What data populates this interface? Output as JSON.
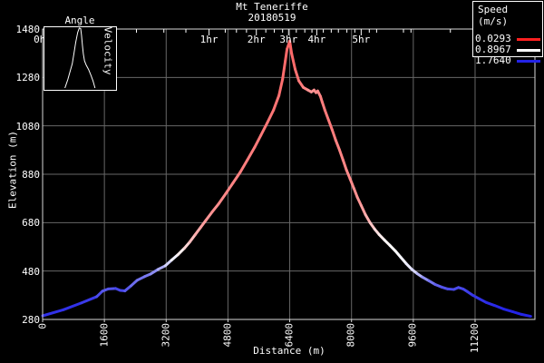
{
  "chart_data": {
    "type": "line",
    "title": "Mt Teneriffe",
    "subtitle": "20180519",
    "xlabel": "Distance (m)",
    "ylabel": "Elevation (m)",
    "xlim": [
      0,
      12750
    ],
    "ylim": [
      280,
      1480
    ],
    "x_ticks": [
      0,
      1600,
      3200,
      4800,
      6400,
      8000,
      9600,
      11200
    ],
    "y_ticks": [
      280,
      480,
      680,
      880,
      1080,
      1280,
      1480
    ],
    "grid": true,
    "top_axis": {
      "unit": "time",
      "major": [
        {
          "label": "0hr",
          "m": 0
        },
        {
          "label": "1hr",
          "m": 4310
        },
        {
          "label": "2hr",
          "m": 5535
        },
        {
          "label": "3hr",
          "m": 6370
        },
        {
          "label": "4hr",
          "m": 7100
        },
        {
          "label": "5hr",
          "m": 8250
        }
      ],
      "minor_m": [
        2430,
        3140,
        3710,
        4730,
        5020,
        5280,
        5780,
        6000,
        6215,
        6570,
        6790,
        6975,
        7270,
        7475,
        7660,
        7880,
        8085,
        8460,
        8650,
        9345,
        9540,
        10560
      ]
    },
    "legend": {
      "title": "Speed (m/s)",
      "position": "top-right",
      "values": [
        0.0293,
        0.8967,
        1.764
      ],
      "entries": [
        {
          "label": "0.0293",
          "color": "#ff2020"
        },
        {
          "label": "0.8967",
          "color": "#ffffff"
        },
        {
          "label": "1.7640",
          "color": "#2323e6"
        }
      ]
    },
    "inset": {
      "title": "Angle",
      "side_label": "Velocity",
      "curve": [
        [
          0.286,
          1.0
        ],
        [
          0.302,
          0.944
        ],
        [
          0.327,
          0.859
        ],
        [
          0.355,
          0.742
        ],
        [
          0.388,
          0.601
        ],
        [
          0.412,
          0.437
        ],
        [
          0.437,
          0.249
        ],
        [
          0.465,
          0.085
        ],
        [
          0.486,
          0.014
        ],
        [
          0.506,
          0.023
        ],
        [
          0.518,
          0.131
        ],
        [
          0.531,
          0.296
        ],
        [
          0.543,
          0.437
        ],
        [
          0.559,
          0.554
        ],
        [
          0.584,
          0.624
        ],
        [
          0.616,
          0.695
        ],
        [
          0.649,
          0.789
        ],
        [
          0.678,
          0.883
        ],
        [
          0.698,
          0.962
        ],
        [
          0.706,
          1.0
        ]
      ]
    },
    "series": [
      {
        "name": "elevation profile colored by speed",
        "point_format": [
          "distance_m",
          "elevation_m",
          "speed_mps"
        ],
        "points": [
          [
            0,
            295,
            1.7
          ],
          [
            540,
            320,
            1.72
          ],
          [
            1000,
            348,
            1.7
          ],
          [
            1400,
            374,
            1.65
          ],
          [
            1550,
            397,
            1.55
          ],
          [
            1700,
            406,
            1.55
          ],
          [
            1890,
            408,
            1.6
          ],
          [
            2010,
            400,
            1.65
          ],
          [
            2130,
            398,
            1.6
          ],
          [
            2290,
            419,
            1.5
          ],
          [
            2450,
            442,
            1.45
          ],
          [
            2640,
            457,
            1.45
          ],
          [
            2800,
            468,
            1.4
          ],
          [
            2990,
            487,
            1.3
          ],
          [
            3180,
            502,
            1.15
          ],
          [
            3340,
            525,
            1.0
          ],
          [
            3500,
            547,
            0.9
          ],
          [
            3670,
            574,
            0.78
          ],
          [
            3810,
            600,
            0.68
          ],
          [
            3950,
            630,
            0.6
          ],
          [
            4090,
            660,
            0.55
          ],
          [
            4230,
            690,
            0.5
          ],
          [
            4390,
            724,
            0.47
          ],
          [
            4560,
            758,
            0.45
          ],
          [
            4740,
            799,
            0.43
          ],
          [
            4930,
            844,
            0.42
          ],
          [
            5120,
            889,
            0.4
          ],
          [
            5300,
            938,
            0.4
          ],
          [
            5490,
            991,
            0.38
          ],
          [
            5650,
            1040,
            0.38
          ],
          [
            5820,
            1093,
            0.37
          ],
          [
            5980,
            1145,
            0.36
          ],
          [
            6120,
            1205,
            0.35
          ],
          [
            6215,
            1273,
            0.33
          ],
          [
            6285,
            1348,
            0.32
          ],
          [
            6330,
            1397,
            0.31
          ],
          [
            6400,
            1430,
            0.3
          ],
          [
            6450,
            1378,
            0.31
          ],
          [
            6540,
            1314,
            0.33
          ],
          [
            6635,
            1266,
            0.36
          ],
          [
            6750,
            1239,
            0.4
          ],
          [
            6870,
            1228,
            0.45
          ],
          [
            6960,
            1220,
            0.5
          ],
          [
            7030,
            1228,
            0.48
          ],
          [
            7080,
            1217,
            0.45
          ],
          [
            7125,
            1224,
            0.46
          ],
          [
            7195,
            1202,
            0.42
          ],
          [
            7240,
            1179,
            0.4
          ],
          [
            7310,
            1145,
            0.38
          ],
          [
            7405,
            1104,
            0.38
          ],
          [
            7500,
            1063,
            0.38
          ],
          [
            7590,
            1021,
            0.4
          ],
          [
            7690,
            980,
            0.42
          ],
          [
            7780,
            939,
            0.42
          ],
          [
            7870,
            897,
            0.43
          ],
          [
            7965,
            860,
            0.45
          ],
          [
            8060,
            822,
            0.45
          ],
          [
            8150,
            785,
            0.48
          ],
          [
            8250,
            751,
            0.5
          ],
          [
            8360,
            713,
            0.55
          ],
          [
            8480,
            680,
            0.62
          ],
          [
            8600,
            653,
            0.72
          ],
          [
            8715,
            631,
            0.8
          ],
          [
            8855,
            608,
            0.85
          ],
          [
            8995,
            586,
            0.88
          ],
          [
            9135,
            563,
            0.9
          ],
          [
            9275,
            537,
            0.92
          ],
          [
            9415,
            511,
            0.95
          ],
          [
            9555,
            488,
            1.0
          ],
          [
            9695,
            470,
            1.1
          ],
          [
            9835,
            455,
            1.25
          ],
          [
            10000,
            440,
            1.4
          ],
          [
            10160,
            425,
            1.5
          ],
          [
            10330,
            414,
            1.55
          ],
          [
            10490,
            406,
            1.6
          ],
          [
            10650,
            404,
            1.62
          ],
          [
            10770,
            412,
            1.6
          ],
          [
            10890,
            406,
            1.62
          ],
          [
            11000,
            395,
            1.65
          ],
          [
            11140,
            380,
            1.68
          ],
          [
            11310,
            365,
            1.7
          ],
          [
            11490,
            350,
            1.72
          ],
          [
            11700,
            338,
            1.74
          ],
          [
            11940,
            323,
            1.75
          ],
          [
            12170,
            312,
            1.76
          ],
          [
            12400,
            301,
            1.76
          ],
          [
            12640,
            293,
            1.76
          ]
        ]
      }
    ],
    "colors": {
      "background": "#000000",
      "text": "#ffffff",
      "grid": "#676767",
      "border": "#d8d8d8",
      "speed_slow": "#ff2020",
      "speed_mid": "#ffffff",
      "speed_fast": "#2323e6"
    }
  }
}
